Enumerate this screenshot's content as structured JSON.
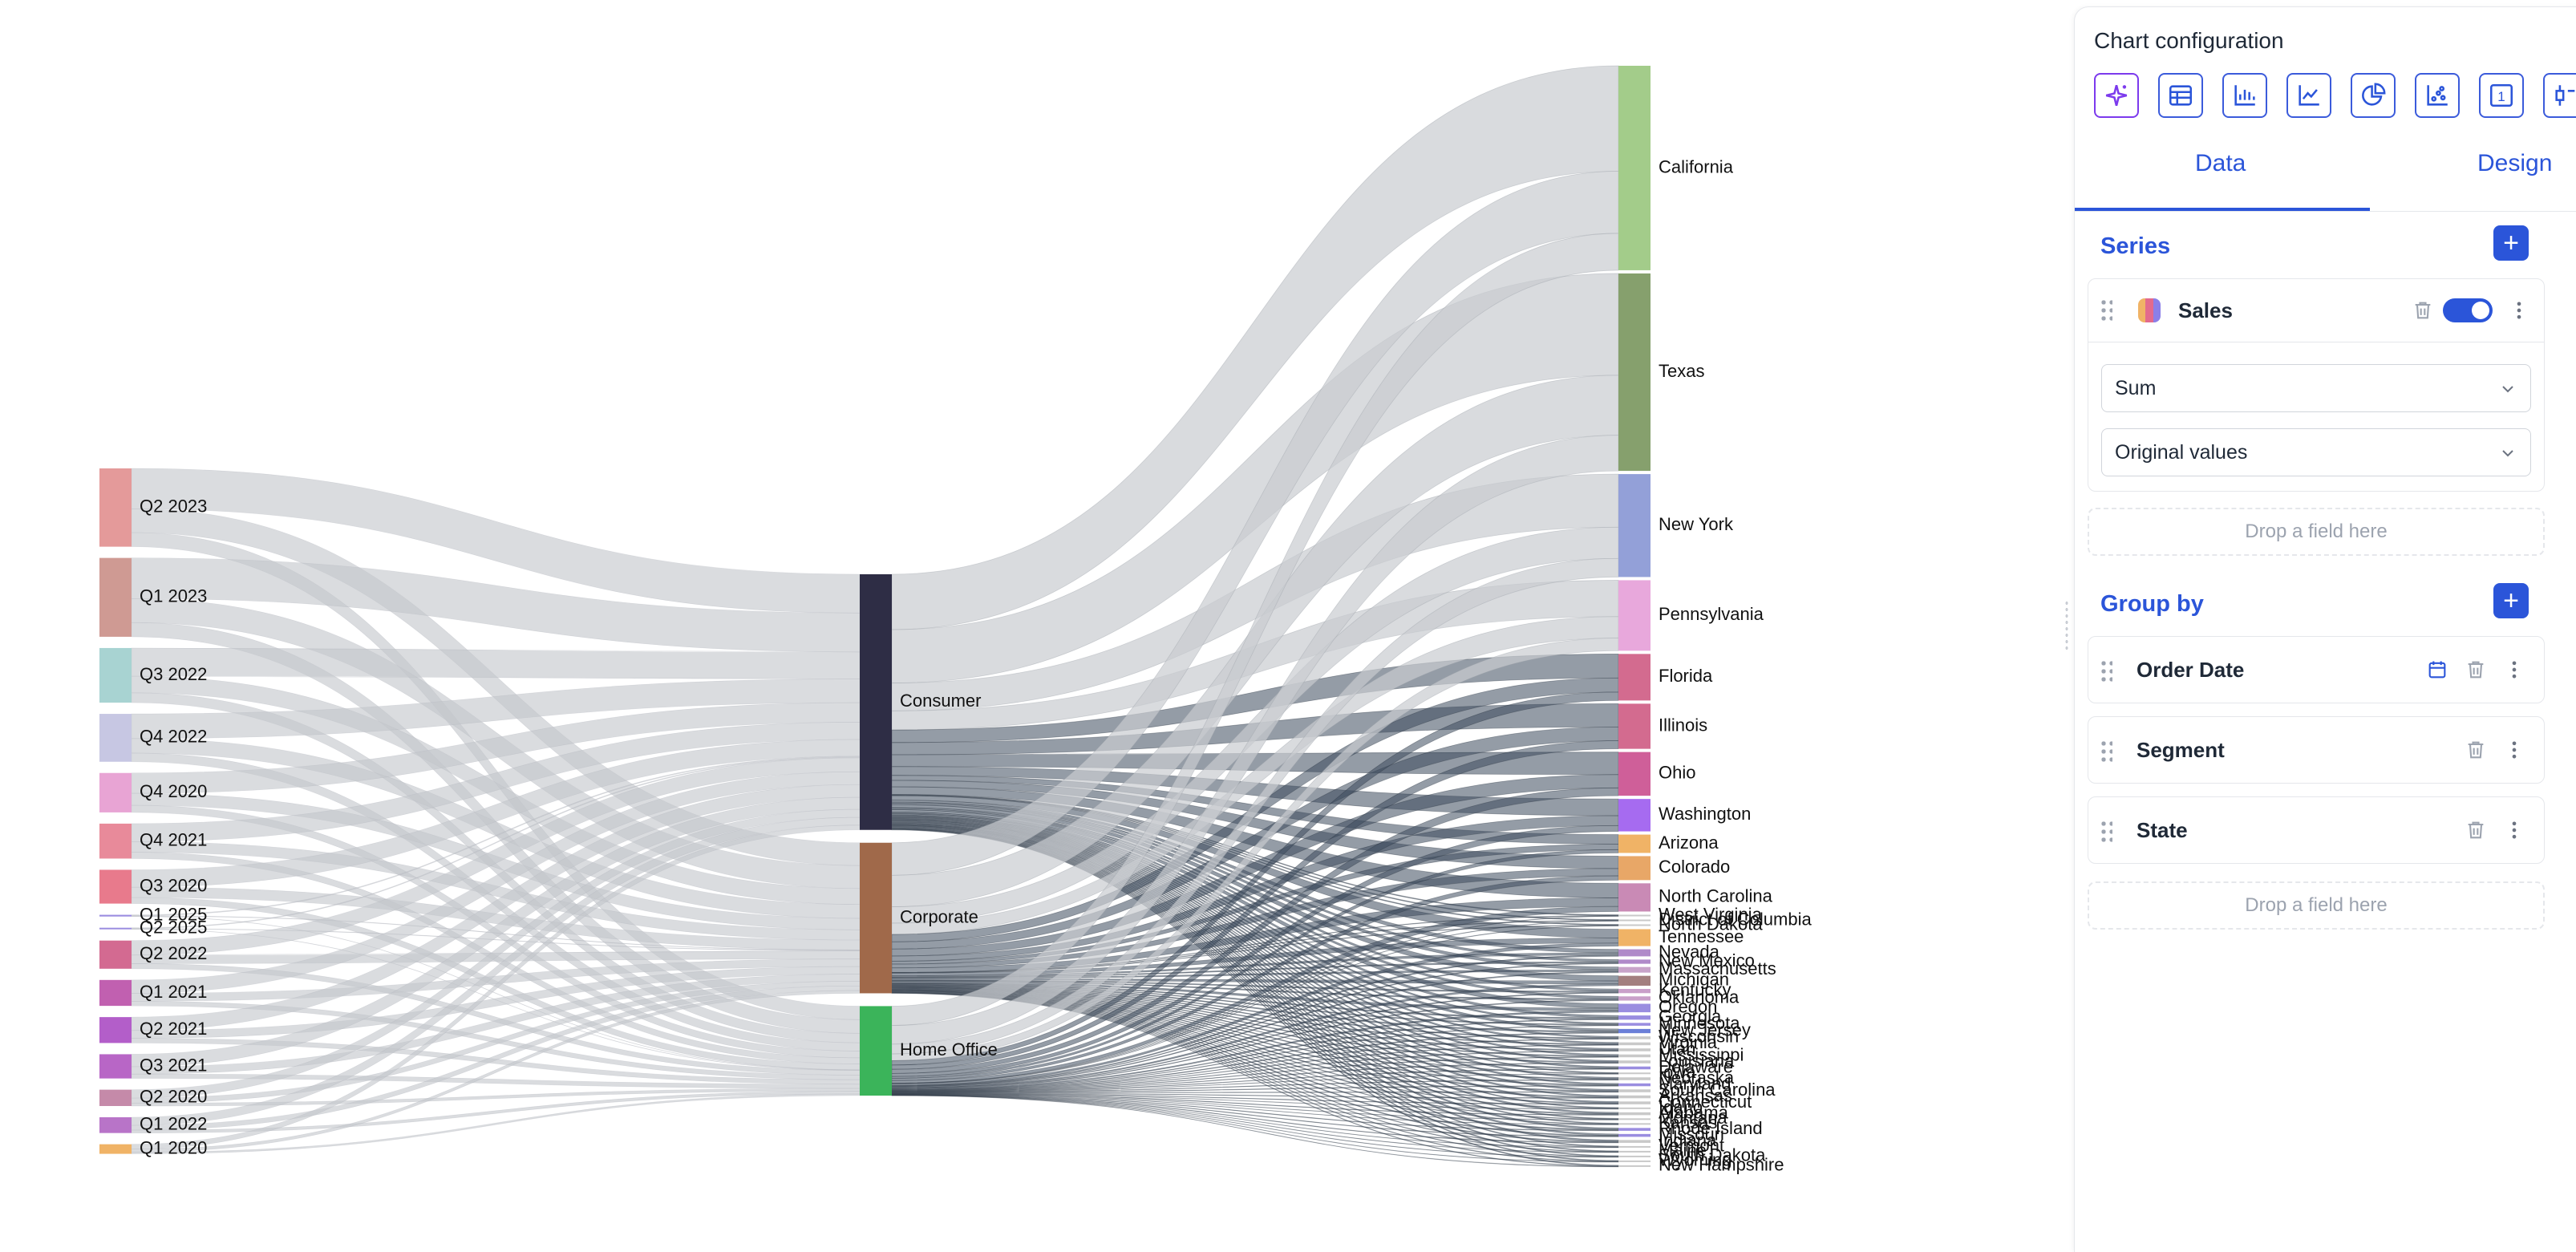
{
  "chart_data": {
    "type": "sankey",
    "levels": [
      "Order Date",
      "Segment",
      "State"
    ],
    "quarters": [
      {
        "name": "Q2 2023",
        "value": 139,
        "color": "#e49a9a"
      },
      {
        "name": "Q1 2023",
        "value": 140,
        "color": "#cf9a93"
      },
      {
        "name": "Q3 2022",
        "value": 97,
        "color": "#a8d3d2"
      },
      {
        "name": "Q4 2022",
        "value": 85,
        "color": "#c7c7e3"
      },
      {
        "name": "Q4 2020",
        "value": 70,
        "color": "#e8a4d4"
      },
      {
        "name": "Q4 2021",
        "value": 62,
        "color": "#e88a9a"
      },
      {
        "name": "Q3 2020",
        "value": 60,
        "color": "#e87a8c"
      },
      {
        "name": "Q1 2025",
        "value": 3,
        "color": "#9a8de0"
      },
      {
        "name": "Q2 2025",
        "value": 2,
        "color": "#9a8de0"
      },
      {
        "name": "Q2 2022",
        "value": 50,
        "color": "#d36a91"
      },
      {
        "name": "Q1 2021",
        "value": 46,
        "color": "#c160b0"
      },
      {
        "name": "Q2 2021",
        "value": 46,
        "color": "#b35ec9"
      },
      {
        "name": "Q3 2021",
        "value": 43,
        "color": "#b866c6"
      },
      {
        "name": "Q2 2020",
        "value": 29,
        "color": "#c58aa9"
      },
      {
        "name": "Q1 2022",
        "value": 28,
        "color": "#b874c8"
      },
      {
        "name": "Q1 2020",
        "value": 17,
        "color": "#f0b366"
      }
    ],
    "segments": [
      {
        "name": "Consumer",
        "value": 540,
        "color": "#2e2d45"
      },
      {
        "name": "Corporate",
        "value": 318,
        "color": "#a0694a"
      },
      {
        "name": "Home Office",
        "value": 189,
        "color": "#3bb45a"
      }
    ],
    "states": [
      {
        "name": "California",
        "value": 145,
        "color": "#a3cc8a"
      },
      {
        "name": "Texas",
        "value": 140,
        "color": "#86a06d"
      },
      {
        "name": "New York",
        "value": 73,
        "color": "#93a0d8"
      },
      {
        "name": "Pennsylvania",
        "value": 50,
        "color": "#e8a8dc"
      },
      {
        "name": "Florida",
        "value": 33,
        "color": "#d36b8f"
      },
      {
        "name": "Illinois",
        "value": 32,
        "color": "#d36b8f"
      },
      {
        "name": "Ohio",
        "value": 31,
        "color": "#cf5f99"
      },
      {
        "name": "Washington",
        "value": 23,
        "color": "#a66bf0"
      },
      {
        "name": "Arizona",
        "value": 13,
        "color": "#f0b366"
      },
      {
        "name": "Colorado",
        "value": 17,
        "color": "#e8a767"
      },
      {
        "name": "North Carolina",
        "value": 20,
        "color": "#c98ab5"
      },
      {
        "name": "West Virginia",
        "value": 1,
        "color": "#c9c9c9"
      },
      {
        "name": "District of Columbia",
        "value": 1,
        "color": "#c9c9c9"
      },
      {
        "name": "North Dakota",
        "value": 1,
        "color": "#c9c9c9"
      },
      {
        "name": "Tennessee",
        "value": 12,
        "color": "#f0b366"
      },
      {
        "name": "Nevada",
        "value": 5,
        "color": "#b08ac9"
      },
      {
        "name": "New Mexico",
        "value": 3,
        "color": "#b08ac9"
      },
      {
        "name": "Massachusetts",
        "value": 4,
        "color": "#c8a3c9"
      },
      {
        "name": "Michigan",
        "value": 7,
        "color": "#a37f7f"
      },
      {
        "name": "Kentucky",
        "value": 3,
        "color": "#c9a0c9"
      },
      {
        "name": "Oklahoma",
        "value": 3,
        "color": "#c9a0c9"
      },
      {
        "name": "Oregon",
        "value": 6,
        "color": "#9a8de0"
      },
      {
        "name": "Georgia",
        "value": 3,
        "color": "#9a8de0"
      },
      {
        "name": "Minnesota",
        "value": 2,
        "color": "#9a8de0"
      },
      {
        "name": "New Jersey",
        "value": 3,
        "color": "#6b7fd8"
      },
      {
        "name": "Wisconsin",
        "value": 2,
        "color": "#c9c9c9"
      },
      {
        "name": "Virginia",
        "value": 2,
        "color": "#c9c9c9"
      },
      {
        "name": "Utah",
        "value": 2,
        "color": "#c9c9c9"
      },
      {
        "name": "Mississippi",
        "value": 2,
        "color": "#c9c9c9"
      },
      {
        "name": "Louisiana",
        "value": 2,
        "color": "#c9c9c9"
      },
      {
        "name": "Delaware",
        "value": 2,
        "color": "#9a8de0"
      },
      {
        "name": "Iowa",
        "value": 1,
        "color": "#c9c9c9"
      },
      {
        "name": "Nebraska",
        "value": 2,
        "color": "#c9c9c9"
      },
      {
        "name": "Maryland",
        "value": 2,
        "color": "#9a8de0"
      },
      {
        "name": "South Carolina",
        "value": 2,
        "color": "#c9c9c9"
      },
      {
        "name": "Arkansas",
        "value": 2,
        "color": "#c9c9c9"
      },
      {
        "name": "Connecticut",
        "value": 2,
        "color": "#c9c9c9"
      },
      {
        "name": "Idaho",
        "value": 1,
        "color": "#c9c9c9"
      },
      {
        "name": "Alabama",
        "value": 2,
        "color": "#c9c9c9"
      },
      {
        "name": "Montana",
        "value": 1,
        "color": "#c9c9c9"
      },
      {
        "name": "Kansas",
        "value": 1,
        "color": "#c9c9c9"
      },
      {
        "name": "Rhode Island",
        "value": 2,
        "color": "#9a8de0"
      },
      {
        "name": "Missouri",
        "value": 2,
        "color": "#9a8de0"
      },
      {
        "name": "Indiana",
        "value": 2,
        "color": "#c9c9c9"
      },
      {
        "name": "Vermont",
        "value": 1,
        "color": "#c9c9c9"
      },
      {
        "name": "Maine",
        "value": 1,
        "color": "#c9c9c9"
      },
      {
        "name": "South Dakota",
        "value": 1,
        "color": "#c9c9c9"
      },
      {
        "name": "Wyoming",
        "value": 1,
        "color": "#c9c9c9"
      },
      {
        "name": "New Hampshire",
        "value": 1,
        "color": "#c9c9c9"
      }
    ]
  },
  "panel": {
    "title": "Chart configuration",
    "chart_types": [
      {
        "icon": "sparkle-icon",
        "active": true
      },
      {
        "icon": "table-icon"
      },
      {
        "icon": "bar-chart-icon"
      },
      {
        "icon": "line-chart-icon"
      },
      {
        "icon": "pie-chart-icon"
      },
      {
        "icon": "scatter-chart-icon"
      },
      {
        "icon": "number-icon",
        "glyph": "1"
      },
      {
        "icon": "boxplot-icon"
      }
    ],
    "tabs": {
      "data": "Data",
      "design": "Design"
    },
    "series": {
      "title": "Series",
      "field": "Sales",
      "aggregation": "Sum",
      "transform": "Original values",
      "drop_hint": "Drop a field here"
    },
    "group_by": {
      "title": "Group by",
      "fields": [
        "Order Date",
        "Segment",
        "State"
      ],
      "drop_hint": "Drop a field here"
    },
    "colors": {
      "accent": "#2b55d9",
      "sparkle": "#7c3aed"
    }
  }
}
